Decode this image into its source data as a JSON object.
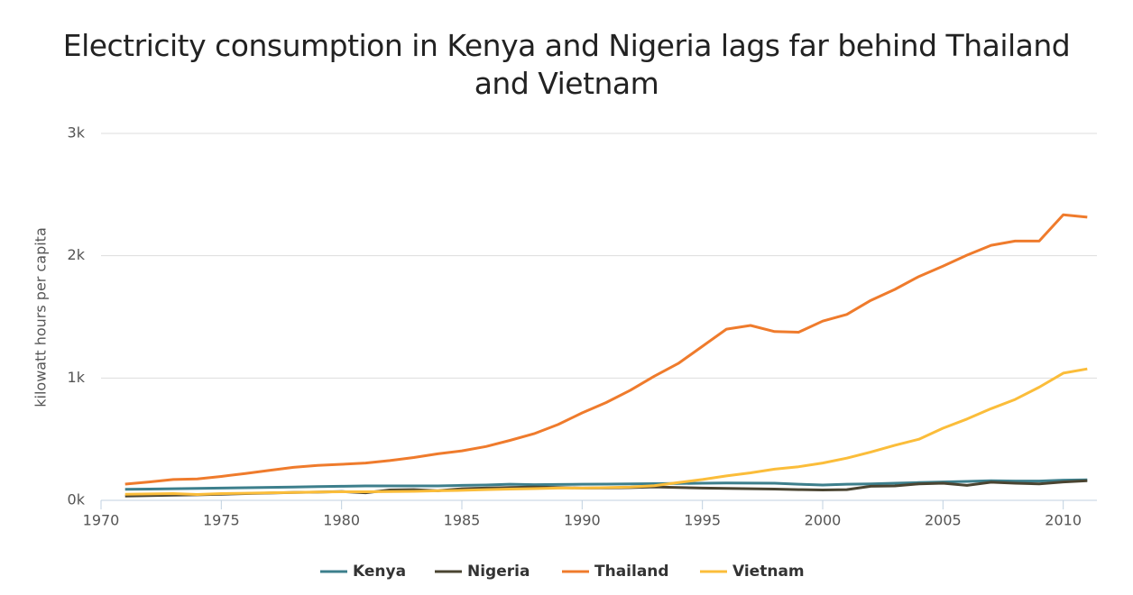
{
  "chart_data": {
    "type": "line",
    "title": "Electricity consumption in Kenya and Nigeria lags far behind Thailand and Vietnam",
    "y_label": "kilowatt hours per capita",
    "x": [
      1971,
      1972,
      1973,
      1974,
      1975,
      1976,
      1977,
      1978,
      1979,
      1980,
      1981,
      1982,
      1983,
      1984,
      1985,
      1986,
      1987,
      1988,
      1989,
      1990,
      1991,
      1992,
      1993,
      1994,
      1995,
      1996,
      1997,
      1998,
      1999,
      2000,
      2001,
      2002,
      2003,
      2004,
      2005,
      2006,
      2007,
      2008,
      2009,
      2010,
      2011
    ],
    "series": [
      {
        "name": "Kenya",
        "color": "#3d7f8c",
        "values": [
          90,
          92,
          95,
          97,
          100,
          103,
          106,
          109,
          112,
          115,
          118,
          118,
          118,
          118,
          122,
          125,
          132,
          128,
          130,
          132,
          133,
          134,
          136,
          138,
          140,
          142,
          141,
          140,
          132,
          125,
          132,
          134,
          140,
          145,
          150,
          155,
          160,
          158,
          158,
          165,
          168
        ]
      },
      {
        "name": "Nigeria",
        "color": "#4a4431",
        "values": [
          35,
          38,
          42,
          45,
          50,
          55,
          60,
          64,
          67,
          72,
          62,
          85,
          88,
          78,
          95,
          100,
          105,
          108,
          105,
          100,
          102,
          104,
          110,
          105,
          100,
          98,
          95,
          92,
          88,
          85,
          88,
          115,
          118,
          135,
          140,
          122,
          148,
          140,
          135,
          150,
          160
        ]
      },
      {
        "name": "Thailand",
        "color": "#ef7b2c",
        "values": [
          133,
          150,
          170,
          175,
          195,
          220,
          245,
          270,
          285,
          295,
          305,
          325,
          350,
          380,
          405,
          440,
          490,
          545,
          620,
          715,
          800,
          900,
          1015,
          1120,
          1260,
          1400,
          1430,
          1380,
          1375,
          1465,
          1520,
          1635,
          1725,
          1830,
          1915,
          2005,
          2085,
          2120,
          2120,
          2335,
          2315
        ]
      },
      {
        "name": "Vietnam",
        "color": "#fbbd3a",
        "values": [
          50,
          52,
          55,
          48,
          55,
          58,
          62,
          65,
          68,
          70,
          70,
          72,
          74,
          78,
          82,
          88,
          92,
          96,
          100,
          100,
          104,
          108,
          120,
          145,
          170,
          200,
          225,
          255,
          275,
          305,
          345,
          395,
          450,
          500,
          590,
          665,
          750,
          825,
          925,
          1040,
          1075
        ]
      }
    ],
    "xlim": [
      1970,
      2011.4
    ],
    "xticks": [
      1970,
      1975,
      1980,
      1985,
      1990,
      1995,
      2000,
      2005,
      2010
    ],
    "ylim": [
      0,
      3000
    ],
    "yticks": [
      {
        "value": 0,
        "label": "0k"
      },
      {
        "value": 1000,
        "label": "1k"
      },
      {
        "value": 2000,
        "label": "2k"
      },
      {
        "value": 3000,
        "label": "3k"
      }
    ],
    "grid": true,
    "legend": "bottom"
  }
}
